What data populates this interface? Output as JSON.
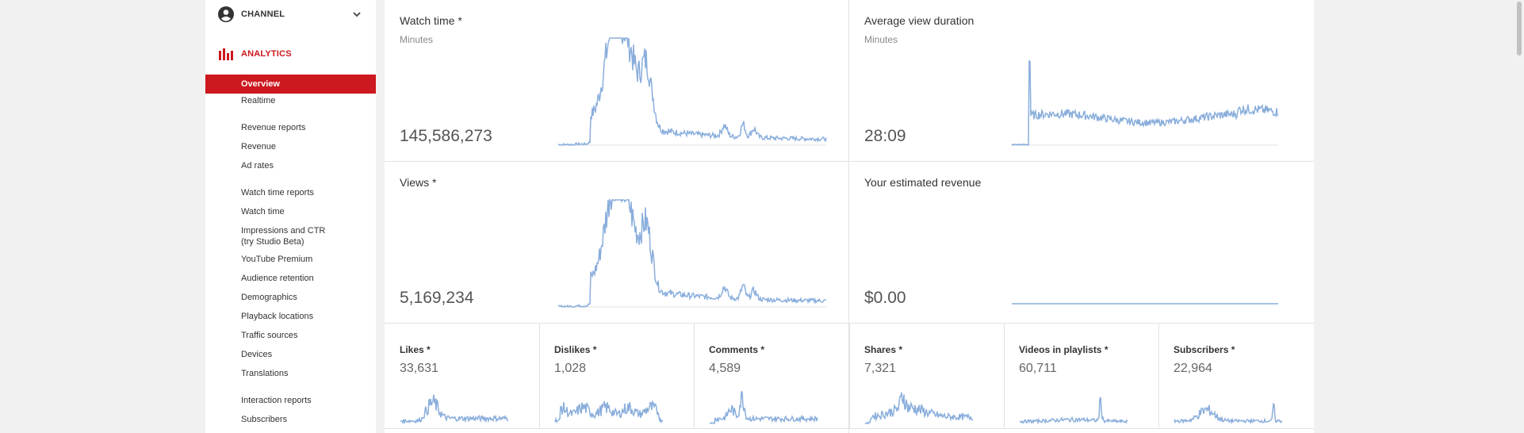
{
  "sidebar": {
    "channel_label": "CHANNEL",
    "analytics_label": "ANALYTICS",
    "items": [
      {
        "label": "Overview",
        "active": true
      },
      {
        "label": "Realtime"
      },
      {
        "label": "Revenue reports",
        "section": true
      },
      {
        "label": "Revenue"
      },
      {
        "label": "Ad rates"
      },
      {
        "label": "Watch time reports",
        "section": true
      },
      {
        "label": "Watch time"
      },
      {
        "label": "Impressions and CTR (try Studio Beta)"
      },
      {
        "label": "YouTube Premium"
      },
      {
        "label": "Audience retention"
      },
      {
        "label": "Demographics"
      },
      {
        "label": "Playback locations"
      },
      {
        "label": "Traffic sources"
      },
      {
        "label": "Devices"
      },
      {
        "label": "Translations"
      },
      {
        "label": "Interaction reports",
        "section": true
      },
      {
        "label": "Subscribers"
      }
    ]
  },
  "cards": {
    "watch_time": {
      "title": "Watch time *",
      "sub": "Minutes",
      "value": "145,586,273"
    },
    "avg_view_duration": {
      "title": "Average view duration",
      "sub": "Minutes",
      "value": "28:09"
    },
    "views": {
      "title": "Views *",
      "value": "5,169,234"
    },
    "revenue": {
      "title": "Your estimated revenue",
      "value": "$0.00"
    }
  },
  "small_cards": [
    {
      "title": "Likes *",
      "value": "33,631"
    },
    {
      "title": "Dislikes *",
      "value": "1,028"
    },
    {
      "title": "Comments *",
      "value": "4,589"
    },
    {
      "title": "Shares *",
      "value": "7,321"
    },
    {
      "title": "Videos in playlists *",
      "value": "60,711"
    },
    {
      "title": "Subscribers *",
      "value": "22,964"
    }
  ],
  "colors": {
    "accent": "#cc181e",
    "spark": "#8aaedc"
  },
  "icons": {
    "channel": "account-circle-icon",
    "chevron": "chevron-down-icon",
    "analytics": "bar-chart-icon"
  }
}
